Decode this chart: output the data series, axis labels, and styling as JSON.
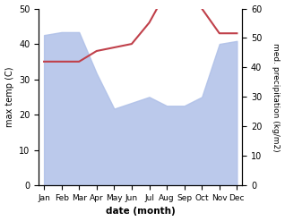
{
  "months": [
    "Jan",
    "Feb",
    "Mar",
    "Apr",
    "May",
    "Jun",
    "Jul",
    "Aug",
    "Sep",
    "Oct",
    "Nov",
    "Dec"
  ],
  "precipitation": [
    51,
    52,
    52,
    38,
    26,
    28,
    30,
    27,
    27,
    30,
    48,
    49
  ],
  "max_temp": [
    35,
    35,
    35,
    38,
    39,
    40,
    46,
    55,
    55,
    50,
    43,
    43
  ],
  "precip_color": "#afc0e8",
  "temp_color": "#c0404a",
  "ylabel_left": "max temp (C)",
  "ylabel_right": "med. precipitation (kg/m2)",
  "xlabel": "date (month)",
  "ylim_left": [
    0,
    50
  ],
  "ylim_right": [
    0,
    60
  ],
  "yticks_left": [
    0,
    10,
    20,
    30,
    40,
    50
  ],
  "yticks_right": [
    0,
    10,
    20,
    30,
    40,
    50,
    60
  ],
  "background_color": "#ffffff"
}
